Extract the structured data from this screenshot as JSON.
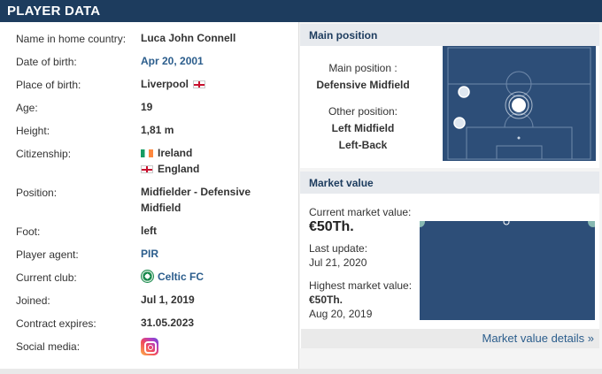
{
  "header": {
    "title": "PLAYER DATA"
  },
  "player": {
    "rows": [
      {
        "label": "Name in home country:",
        "value": "Luca John Connell"
      },
      {
        "label": "Date of birth:",
        "value": "Apr 20, 2001"
      },
      {
        "label": "Place of birth:",
        "value": "Liverpool"
      },
      {
        "label": "Age:",
        "value": "19"
      },
      {
        "label": "Height:",
        "value": "1,81 m"
      },
      {
        "label": "Citizenship:",
        "value": "Ireland",
        "value2": "England"
      },
      {
        "label": "Position:",
        "value": "Midfielder - Defensive",
        "value2": "Midfield"
      },
      {
        "label": "Foot:",
        "value": "left"
      },
      {
        "label": "Player agent:",
        "value": "PIR"
      },
      {
        "label": "Current club:",
        "value": "Celtic FC"
      },
      {
        "label": "Joined:",
        "value": "Jul 1, 2019"
      },
      {
        "label": "Contract expires:",
        "value": "31.05.2023"
      },
      {
        "label": "Social media:",
        "icon": "instagram-icon"
      }
    ]
  },
  "main_position": {
    "title": "Main position",
    "main_label": "Main position :",
    "main_value": "Defensive Midfield",
    "other_label": "Other position:",
    "other_values": [
      "Left Midfield",
      "Left-Back"
    ]
  },
  "market_value": {
    "title": "Market value",
    "current_label": "Current market value:",
    "current_value": "€50Th.",
    "last_update_label": "Last update:",
    "last_update_value": "Jul 21, 2020",
    "highest_label": "Highest market value:",
    "highest_value": "€50Th.",
    "highest_date": "Aug 20, 2019",
    "details_link": "Market value details »"
  },
  "colors": {
    "header": "#1d3c5e",
    "pitch": "#2d4e78",
    "link": "#2b5d8c"
  }
}
